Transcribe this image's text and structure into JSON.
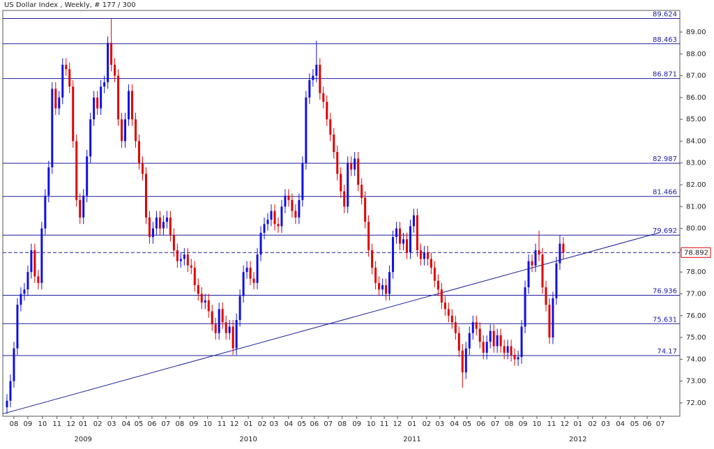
{
  "chart_data": {
    "type": "candlestick",
    "title": "US Dollar Index , Weekly, # 177 / 300",
    "up_color": "#1010e0",
    "down_color": "#e00000",
    "level_color": "#1c1c9c",
    "current_color": "#e00000",
    "xlim": [
      -1.2,
      193.5
    ],
    "ylim": [
      71.39,
      89.99
    ],
    "open": [
      71.8,
      72.1,
      73.0,
      74.5,
      76.5,
      77.0,
      77.2,
      78.0,
      79.0,
      77.8,
      77.5,
      80.0,
      81.5,
      82.8,
      86.4,
      85.5,
      86.0,
      87.5,
      87.3,
      86.5,
      84.0,
      81.3,
      80.5,
      81.5,
      83.3,
      85.0,
      86.0,
      85.5,
      86.5,
      86.7,
      88.5,
      87.5,
      87.0,
      85.0,
      84.0,
      85.0,
      86.3,
      85.0,
      84.0,
      83.0,
      82.5,
      80.5,
      79.6,
      80.0,
      80.5,
      80.0,
      80.3,
      80.5,
      79.7,
      79.0,
      78.5,
      78.6,
      78.8,
      78.3,
      78.2,
      77.4,
      77.0,
      76.6,
      76.7,
      76.2,
      75.6,
      75.2,
      76.3,
      75.7,
      75.2,
      75.5,
      74.5,
      75.8,
      76.9,
      78.0,
      78.2,
      77.7,
      77.5,
      78.8,
      79.8,
      80.2,
      80.4,
      80.8,
      80.2,
      80.1,
      81.0,
      81.5,
      81.3,
      80.8,
      80.5,
      81.3,
      83.0,
      86.0,
      86.8,
      87.0,
      87.5,
      86.2,
      85.8,
      85.0,
      84.3,
      83.5,
      82.5,
      81.7,
      81.0,
      83.0,
      82.7,
      83.2,
      82.0,
      81.4,
      80.3,
      79.0,
      78.2,
      77.5,
      77.2,
      77.4,
      77.0,
      78.0,
      79.6,
      80.0,
      79.3,
      79.5,
      78.9,
      80.1,
      80.6,
      79.0,
      78.6,
      78.9,
      78.6,
      78.2,
      77.6,
      77.2,
      76.6,
      76.3,
      76.0,
      75.7,
      75.2,
      74.4,
      73.4,
      74.5,
      75.2,
      75.7,
      75.4,
      74.8,
      74.3,
      74.8,
      75.3,
      74.6,
      75.1,
      74.6,
      74.3,
      74.6,
      74.2,
      74.0,
      74.1,
      75.5,
      77.3,
      78.5,
      78.3,
      79.0,
      78.8,
      77.3,
      76.5,
      75.0,
      76.8,
      78.4,
      79.3
    ],
    "high": [
      72.4,
      73.3,
      74.8,
      76.8,
      77.3,
      77.5,
      78.3,
      79.3,
      79.3,
      78.1,
      80.3,
      81.8,
      83.1,
      86.7,
      86.7,
      86.3,
      87.8,
      87.8,
      87.6,
      86.8,
      84.3,
      81.6,
      81.8,
      83.6,
      85.3,
      86.3,
      86.3,
      86.8,
      87.0,
      88.8,
      89.6,
      87.8,
      87.3,
      85.3,
      85.3,
      86.6,
      86.6,
      85.3,
      84.3,
      83.3,
      82.8,
      80.8,
      80.3,
      80.8,
      80.8,
      80.6,
      80.8,
      80.8,
      80.0,
      79.3,
      78.9,
      79.1,
      79.1,
      78.6,
      78.5,
      77.7,
      77.3,
      77.0,
      77.0,
      76.5,
      75.9,
      76.6,
      76.6,
      76.0,
      75.8,
      75.8,
      76.1,
      77.2,
      78.3,
      78.5,
      78.5,
      78.0,
      79.1,
      80.1,
      80.5,
      80.7,
      81.1,
      81.1,
      80.5,
      81.3,
      81.8,
      81.8,
      81.6,
      81.1,
      81.6,
      83.3,
      86.3,
      87.1,
      87.3,
      88.6,
      87.8,
      86.5,
      86.1,
      85.3,
      84.6,
      83.8,
      82.8,
      82.0,
      83.3,
      83.3,
      83.5,
      83.5,
      82.3,
      81.7,
      80.6,
      79.3,
      78.5,
      77.8,
      77.7,
      77.7,
      78.3,
      79.9,
      80.3,
      80.3,
      79.8,
      79.8,
      80.4,
      80.9,
      80.9,
      79.3,
      79.2,
      79.2,
      78.9,
      78.5,
      77.9,
      77.5,
      76.9,
      76.6,
      76.3,
      76.0,
      75.5,
      74.7,
      74.8,
      75.5,
      76.0,
      76.0,
      75.7,
      75.1,
      75.1,
      75.6,
      75.6,
      75.4,
      75.4,
      74.9,
      74.9,
      74.9,
      74.5,
      74.4,
      75.8,
      77.6,
      78.8,
      78.8,
      79.3,
      79.9,
      79.1,
      77.6,
      76.8,
      77.1,
      78.7,
      79.7,
      79.6
    ],
    "low": [
      71.5,
      71.8,
      72.7,
      74.2,
      76.2,
      76.7,
      76.9,
      77.7,
      77.5,
      77.2,
      77.2,
      79.7,
      81.2,
      82.5,
      85.2,
      85.2,
      85.7,
      87.0,
      86.2,
      83.7,
      81.0,
      80.2,
      80.2,
      81.2,
      83.0,
      84.7,
      85.2,
      85.2,
      86.2,
      86.4,
      87.2,
      86.7,
      84.7,
      83.7,
      83.7,
      84.7,
      84.7,
      83.7,
      82.7,
      82.2,
      80.2,
      79.3,
      79.3,
      79.7,
      79.7,
      79.7,
      80.0,
      79.4,
      78.7,
      78.2,
      78.2,
      78.3,
      78.0,
      77.9,
      77.1,
      76.7,
      76.3,
      76.3,
      75.9,
      75.3,
      74.9,
      74.9,
      75.4,
      74.9,
      74.9,
      74.2,
      74.2,
      75.5,
      76.6,
      77.7,
      77.4,
      77.2,
      77.2,
      78.5,
      79.5,
      79.9,
      80.1,
      79.9,
      79.8,
      79.8,
      80.7,
      81.0,
      80.5,
      80.2,
      80.2,
      81.0,
      82.7,
      85.7,
      86.5,
      86.7,
      85.9,
      85.5,
      84.7,
      84.0,
      83.2,
      82.2,
      81.4,
      80.7,
      80.7,
      82.4,
      82.4,
      81.7,
      81.1,
      80.0,
      78.7,
      77.9,
      77.2,
      76.9,
      76.9,
      76.7,
      76.7,
      77.7,
      79.3,
      79.0,
      79.0,
      78.6,
      78.6,
      79.8,
      78.7,
      78.3,
      78.3,
      78.3,
      77.9,
      77.3,
      76.9,
      76.3,
      76.0,
      75.7,
      75.4,
      74.9,
      74.1,
      72.7,
      73.1,
      74.2,
      74.9,
      75.1,
      74.5,
      74.0,
      74.0,
      74.5,
      74.3,
      74.3,
      74.3,
      74.0,
      74.0,
      73.9,
      73.7,
      73.7,
      73.8,
      75.2,
      77.0,
      78.0,
      78.0,
      78.5,
      77.0,
      76.2,
      74.7,
      74.7,
      76.5,
      78.1,
      78.6
    ],
    "close": [
      72.1,
      73.0,
      74.5,
      76.5,
      77.0,
      77.2,
      78.0,
      79.0,
      77.8,
      77.5,
      80.0,
      81.5,
      82.8,
      86.4,
      85.5,
      86.0,
      87.5,
      87.3,
      86.5,
      84.0,
      81.3,
      80.5,
      81.5,
      83.3,
      85.0,
      86.0,
      85.5,
      86.5,
      86.7,
      88.5,
      87.5,
      87.0,
      85.0,
      84.0,
      85.0,
      86.3,
      85.0,
      84.0,
      83.0,
      82.5,
      80.5,
      79.6,
      80.0,
      80.5,
      80.0,
      80.3,
      80.5,
      79.7,
      79.0,
      78.5,
      78.6,
      78.8,
      78.3,
      78.2,
      77.4,
      77.0,
      76.6,
      76.7,
      76.2,
      75.6,
      75.2,
      76.3,
      75.7,
      75.2,
      75.5,
      74.5,
      75.8,
      76.9,
      78.0,
      78.2,
      77.7,
      77.5,
      78.8,
      79.8,
      80.2,
      80.4,
      80.8,
      80.2,
      80.1,
      81.0,
      81.5,
      81.3,
      80.8,
      80.5,
      81.3,
      83.0,
      86.0,
      86.8,
      87.0,
      87.5,
      86.2,
      85.8,
      85.0,
      84.3,
      83.5,
      82.5,
      81.7,
      81.0,
      83.0,
      82.7,
      83.2,
      82.0,
      81.4,
      80.3,
      79.0,
      78.2,
      77.5,
      77.2,
      77.4,
      77.0,
      78.0,
      79.6,
      80.0,
      79.3,
      79.5,
      78.9,
      80.1,
      80.6,
      79.0,
      78.6,
      78.9,
      78.6,
      78.2,
      77.6,
      77.2,
      76.6,
      76.3,
      76.0,
      75.7,
      75.2,
      74.4,
      73.4,
      74.5,
      75.2,
      75.7,
      75.4,
      74.8,
      74.3,
      74.8,
      75.3,
      74.6,
      75.1,
      74.6,
      74.3,
      74.6,
      74.2,
      74.0,
      74.1,
      75.5,
      77.3,
      78.5,
      78.3,
      79.0,
      78.8,
      77.3,
      76.5,
      75.0,
      76.8,
      78.4,
      79.3,
      78.9
    ],
    "levels": [
      89.624,
      88.463,
      86.871,
      82.987,
      81.466,
      79.692,
      76.936,
      75.631,
      74.17
    ],
    "current_price": 78.892,
    "trendline": {
      "x": [
        -1.2,
        187.5
      ],
      "y": [
        71.5,
        79.8
      ]
    },
    "yticks": [
      {
        "value": 72,
        "label": "72.00"
      },
      {
        "value": 73,
        "label": "73.00"
      },
      {
        "value": 74,
        "label": "74.00"
      },
      {
        "value": 75,
        "label": "75.00"
      },
      {
        "value": 76,
        "label": "76.00"
      },
      {
        "value": 77,
        "label": "77.00"
      },
      {
        "value": 78,
        "label": "78.00"
      },
      {
        "value": 79,
        "label": "79.00"
      },
      {
        "value": 80,
        "label": "80.00"
      },
      {
        "value": 81,
        "label": "81.00"
      },
      {
        "value": 82,
        "label": "82.00"
      },
      {
        "value": 83,
        "label": "83.00"
      },
      {
        "value": 84,
        "label": "84.00"
      },
      {
        "value": 85,
        "label": "85.00"
      },
      {
        "value": 86,
        "label": "86.00"
      },
      {
        "value": 87,
        "label": "87.00"
      },
      {
        "value": 88,
        "label": "88.00"
      },
      {
        "value": 89,
        "label": "89.00"
      }
    ],
    "xticks": [
      {
        "value": 2.0,
        "label": "08"
      },
      {
        "value": 6.0,
        "label": "09"
      },
      {
        "value": 10.2,
        "label": "10"
      },
      {
        "value": 14.4,
        "label": "11"
      },
      {
        "value": 18.4,
        "label": "12"
      },
      {
        "value": 21.9,
        "label": "01"
      },
      {
        "value": 26.1,
        "label": "02"
      },
      {
        "value": 30.1,
        "label": "03"
      },
      {
        "value": 34.3,
        "label": "04"
      },
      {
        "value": 37.9,
        "label": "05"
      },
      {
        "value": 41.7,
        "label": "06"
      },
      {
        "value": 45.7,
        "label": "07"
      },
      {
        "value": 49.7,
        "label": "08"
      },
      {
        "value": 53.7,
        "label": "09"
      },
      {
        "value": 57.7,
        "label": "10"
      },
      {
        "value": 61.8,
        "label": "11"
      },
      {
        "value": 65.4,
        "label": "12"
      },
      {
        "value": 69.4,
        "label": "01"
      },
      {
        "value": 73.4,
        "label": "02"
      },
      {
        "value": 76.8,
        "label": "03"
      },
      {
        "value": 81.0,
        "label": "04"
      },
      {
        "value": 84.8,
        "label": "05"
      },
      {
        "value": 88.4,
        "label": "06"
      },
      {
        "value": 92.4,
        "label": "07"
      },
      {
        "value": 96.4,
        "label": "08"
      },
      {
        "value": 100.6,
        "label": "09"
      },
      {
        "value": 104.7,
        "label": "10"
      },
      {
        "value": 108.5,
        "label": "11"
      },
      {
        "value": 112.3,
        "label": "12"
      },
      {
        "value": 116.5,
        "label": "01"
      },
      {
        "value": 120.7,
        "label": "02"
      },
      {
        "value": 124.5,
        "label": "03"
      },
      {
        "value": 128.7,
        "label": "04"
      },
      {
        "value": 132.3,
        "label": "05"
      },
      {
        "value": 136.3,
        "label": "06"
      },
      {
        "value": 140.4,
        "label": "07"
      },
      {
        "value": 144.4,
        "label": "08"
      },
      {
        "value": 148.4,
        "label": "09"
      },
      {
        "value": 152.4,
        "label": "10"
      },
      {
        "value": 156.6,
        "label": "11"
      },
      {
        "value": 160.4,
        "label": "12"
      },
      {
        "value": 164.2,
        "label": "01"
      },
      {
        "value": 168.4,
        "label": "02"
      },
      {
        "value": 172.2,
        "label": "03"
      },
      {
        "value": 176.4,
        "label": "04"
      },
      {
        "value": 180.5,
        "label": "05"
      },
      {
        "value": 184.1,
        "label": "06"
      },
      {
        "value": 187.9,
        "label": "07"
      }
    ],
    "year_ticks": [
      {
        "value": 21.9,
        "label": "2009"
      },
      {
        "value": 69.4,
        "label": "2010"
      },
      {
        "value": 116.5,
        "label": "2011"
      },
      {
        "value": 164.2,
        "label": "2012"
      }
    ]
  }
}
